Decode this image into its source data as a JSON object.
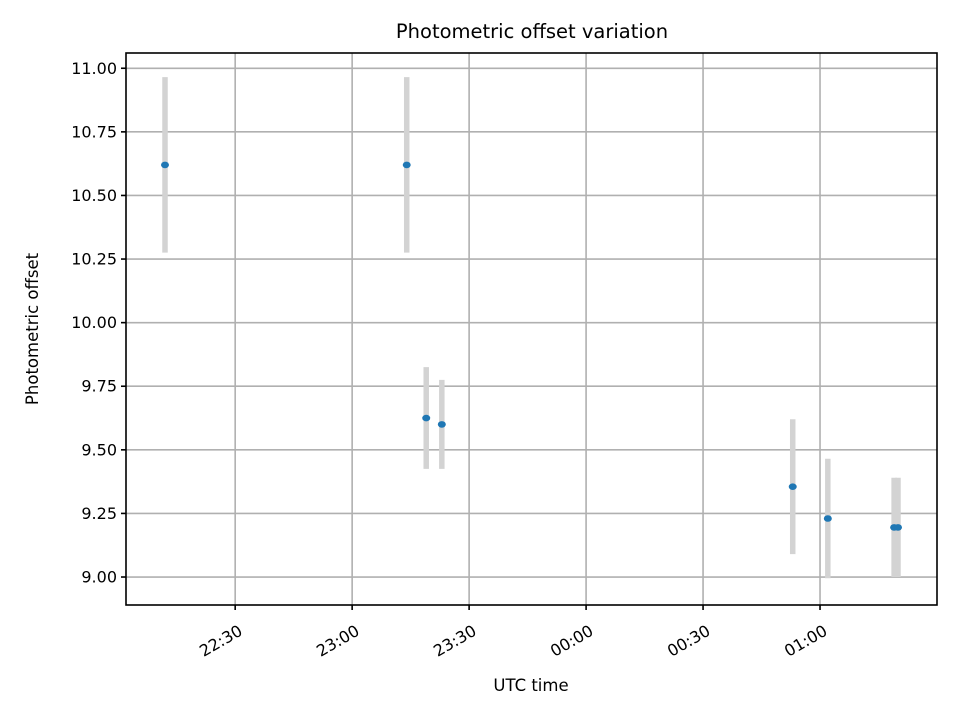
{
  "chart_data": {
    "type": "scatter",
    "title": "Photometric offset variation",
    "xlabel": "UTC time",
    "ylabel": "Photometric offset",
    "x_axis_kind": "time",
    "xlim": [
      "22:02",
      "01:30"
    ],
    "ylim": [
      8.89,
      11.06
    ],
    "xticks": [
      {
        "value": "22:30",
        "label": "22:30"
      },
      {
        "value": "23:00",
        "label": "23:00"
      },
      {
        "value": "23:30",
        "label": "23:30"
      },
      {
        "value": "00:00",
        "label": "00:00"
      },
      {
        "value": "00:30",
        "label": "00:30"
      },
      {
        "value": "01:00",
        "label": "01:00"
      }
    ],
    "yticks": [
      {
        "value": 9.0,
        "label": "9.00"
      },
      {
        "value": 9.25,
        "label": "9.25"
      },
      {
        "value": 9.5,
        "label": "9.50"
      },
      {
        "value": 9.75,
        "label": "9.75"
      },
      {
        "value": 10.0,
        "label": "10.00"
      },
      {
        "value": 10.25,
        "label": "10.25"
      },
      {
        "value": 10.5,
        "label": "10.50"
      },
      {
        "value": 10.75,
        "label": "10.75"
      },
      {
        "value": 11.0,
        "label": "11.00"
      }
    ],
    "grid": true,
    "series": [
      {
        "color": "#1f77b4",
        "errorbar_color": "#d3d3d3",
        "points": [
          {
            "x": "22:12",
            "y": 10.62,
            "err": 0.345
          },
          {
            "x": "23:14",
            "y": 10.62,
            "err": 0.345
          },
          {
            "x": "23:19",
            "y": 9.625,
            "err": 0.2
          },
          {
            "x": "23:23",
            "y": 9.6,
            "err": 0.175
          },
          {
            "x": "00:53",
            "y": 9.355,
            "err": 0.265
          },
          {
            "x": "01:02",
            "y": 9.23,
            "err": 0.235
          },
          {
            "x": "01:19",
            "y": 9.195,
            "err": 0.195
          },
          {
            "x": "01:20",
            "y": 9.195,
            "err": 0.195
          }
        ]
      }
    ]
  }
}
